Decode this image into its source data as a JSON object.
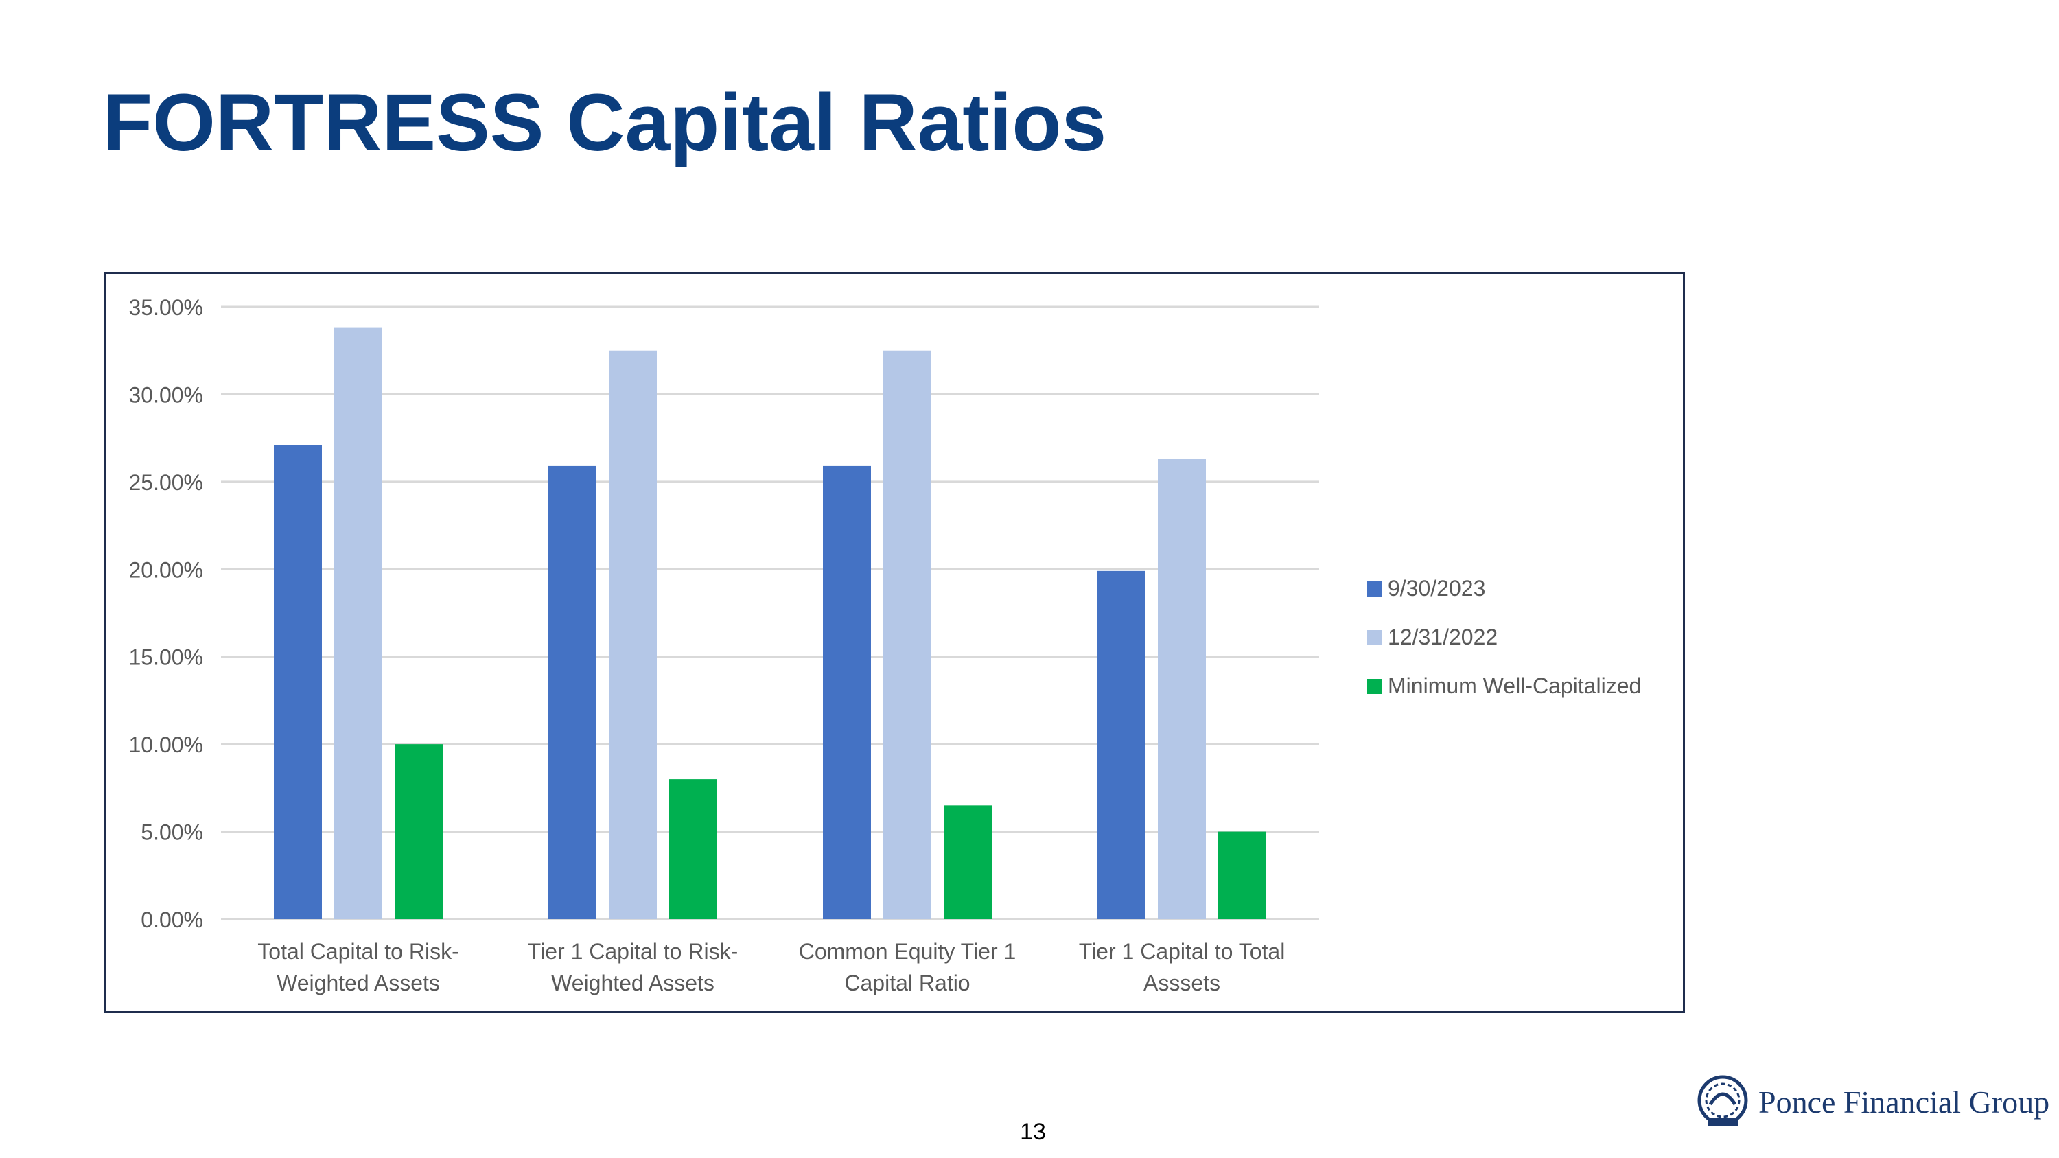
{
  "slide": {
    "title": "FORTRESS Capital Ratios",
    "page_number": "13",
    "logo_text": "Ponce Financial Group"
  },
  "colors": {
    "title": "#0b3d7d",
    "frame": "#1f2d4d",
    "series_1": "#4472c4",
    "series_2": "#b4c7e7",
    "series_3": "#00b050",
    "grid": "#d9d9d9",
    "text": "#595959"
  },
  "chart_data": {
    "type": "bar",
    "title": "",
    "xlabel": "",
    "ylabel": "",
    "ylim": [
      0,
      35
    ],
    "y_ticks": [
      "0.00%",
      "5.00%",
      "10.00%",
      "15.00%",
      "20.00%",
      "25.00%",
      "30.00%",
      "35.00%"
    ],
    "grid": true,
    "legend_position": "right",
    "categories": [
      [
        "Total Capital to Risk-",
        "Weighted Assets"
      ],
      [
        "Tier 1 Capital to Risk-",
        "Weighted Assets"
      ],
      [
        "Common Equity Tier 1",
        "Capital Ratio"
      ],
      [
        "Tier 1 Capital to Total",
        "Asssets"
      ]
    ],
    "series": [
      {
        "name": "9/30/2023",
        "values": [
          27.1,
          25.9,
          25.9,
          19.9
        ]
      },
      {
        "name": "12/31/2022",
        "values": [
          33.8,
          32.5,
          32.5,
          26.3
        ]
      },
      {
        "name": "Minimum Well-Capitalized",
        "values": [
          10.0,
          8.0,
          6.5,
          5.0
        ]
      }
    ]
  }
}
